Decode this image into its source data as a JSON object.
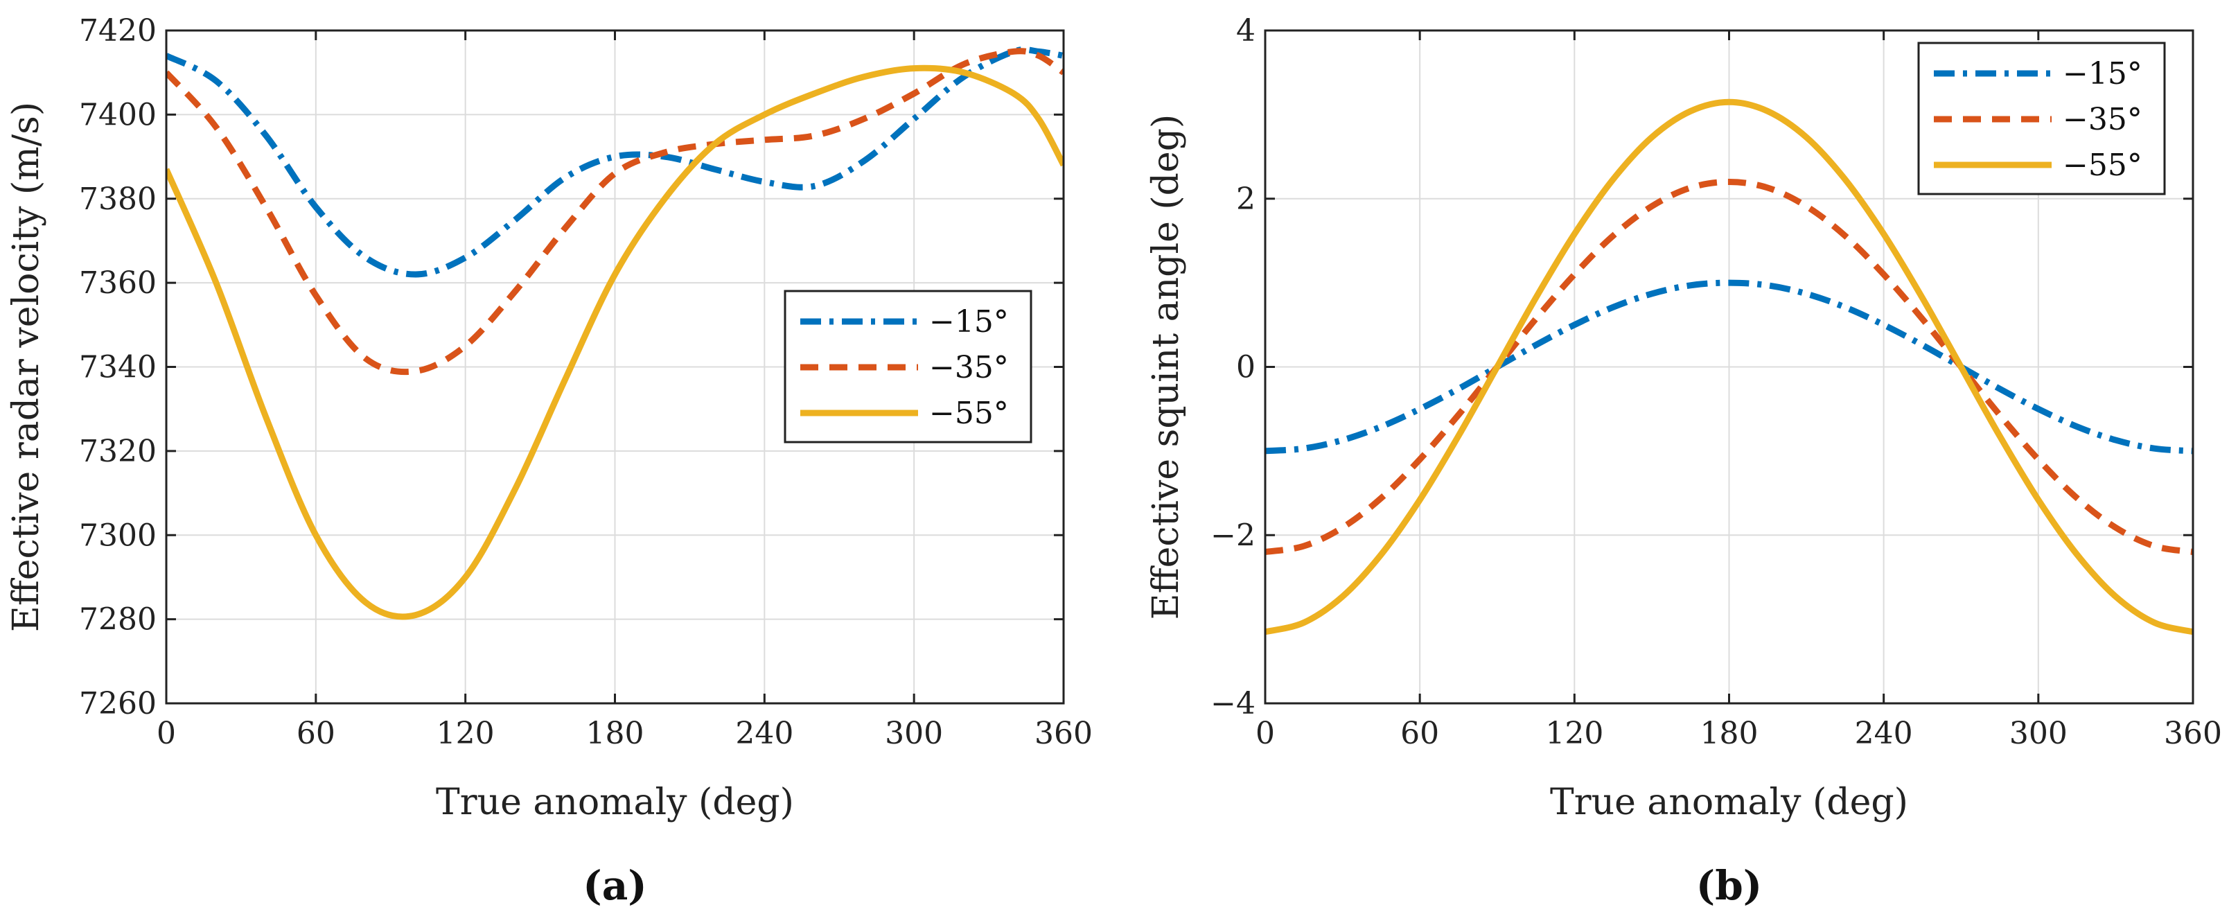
{
  "chart_data": [
    {
      "id": "a",
      "panel_label": "(a)",
      "type": "line",
      "xlabel": "True anomaly (deg)",
      "ylabel": "Effective radar velocity (m/s)",
      "xlim": [
        0,
        360
      ],
      "ylim": [
        7260,
        7420
      ],
      "xticks": [
        0,
        60,
        120,
        180,
        240,
        300,
        360
      ],
      "yticks": [
        7260,
        7280,
        7300,
        7320,
        7340,
        7360,
        7380,
        7400,
        7420
      ],
      "xtick_labels": [
        "0",
        "60",
        "120",
        "180",
        "240",
        "300",
        "360"
      ],
      "ytick_labels": [
        "7260",
        "7280",
        "7300",
        "7320",
        "7340",
        "7360",
        "7380",
        "7400",
        "7420"
      ],
      "grid": true,
      "legend_position": "middle-right",
      "x": [
        0,
        20,
        40,
        60,
        80,
        100,
        120,
        140,
        160,
        180,
        200,
        220,
        240,
        260,
        280,
        300,
        320,
        340,
        350,
        360
      ],
      "series": [
        {
          "name": "−15°",
          "color": "#0072BD",
          "style": "dashdot",
          "values": [
            7414,
            7408,
            7395,
            7378,
            7366,
            7362,
            7366,
            7375,
            7385,
            7390,
            7390,
            7387,
            7384,
            7383,
            7389,
            7399,
            7409,
            7415,
            7415,
            7414
          ]
        },
        {
          "name": "−35°",
          "color": "#D95319",
          "style": "dashed",
          "values": [
            7410,
            7397,
            7378,
            7357,
            7342,
            7339,
            7345,
            7358,
            7373,
            7386,
            7391,
            7393,
            7394,
            7395,
            7399,
            7405,
            7412,
            7415,
            7414,
            7410
          ]
        },
        {
          "name": "−55°",
          "color": "#EDB120",
          "style": "solid",
          "values": [
            7387,
            7360,
            7328,
            7300,
            7284,
            7281,
            7290,
            7311,
            7337,
            7362,
            7380,
            7393,
            7400,
            7405,
            7409,
            7411,
            7410,
            7405,
            7399,
            7388
          ]
        }
      ]
    },
    {
      "id": "b",
      "panel_label": "(b)",
      "type": "line",
      "xlabel": "True anomaly (deg)",
      "ylabel": "Effective squint angle (deg)",
      "xlim": [
        0,
        360
      ],
      "ylim": [
        -4,
        4
      ],
      "xticks": [
        0,
        60,
        120,
        180,
        240,
        300,
        360
      ],
      "yticks": [
        -4,
        -2,
        0,
        2,
        4
      ],
      "xtick_labels": [
        "0",
        "60",
        "120",
        "180",
        "240",
        "300",
        "360"
      ],
      "ytick_labels": [
        "−4",
        "−2",
        "0",
        "2",
        "4"
      ],
      "grid": true,
      "legend_position": "top-right",
      "x": [
        0,
        15,
        30,
        45,
        60,
        75,
        90,
        105,
        120,
        135,
        150,
        165,
        180,
        195,
        210,
        225,
        240,
        255,
        270,
        285,
        300,
        315,
        330,
        345,
        360
      ],
      "series": [
        {
          "name": "−15°",
          "color": "#0072BD",
          "style": "dashdot",
          "values": [
            -1.0,
            -0.97,
            -0.87,
            -0.71,
            -0.5,
            -0.26,
            0.0,
            0.26,
            0.5,
            0.71,
            0.87,
            0.97,
            1.0,
            0.97,
            0.87,
            0.71,
            0.5,
            0.26,
            0.0,
            -0.26,
            -0.5,
            -0.71,
            -0.87,
            -0.97,
            -1.0
          ]
        },
        {
          "name": "−35°",
          "color": "#D95319",
          "style": "dashed",
          "values": [
            -2.2,
            -2.13,
            -1.91,
            -1.56,
            -1.1,
            -0.57,
            0.0,
            0.57,
            1.1,
            1.56,
            1.91,
            2.13,
            2.2,
            2.13,
            1.91,
            1.56,
            1.1,
            0.57,
            0.0,
            -0.57,
            -1.1,
            -1.56,
            -1.91,
            -2.13,
            -2.2
          ]
        },
        {
          "name": "−55°",
          "color": "#EDB120",
          "style": "solid",
          "values": [
            -3.15,
            -3.04,
            -2.73,
            -2.23,
            -1.58,
            -0.82,
            0.0,
            0.82,
            1.58,
            2.23,
            2.73,
            3.04,
            3.15,
            3.04,
            2.73,
            2.23,
            1.58,
            0.82,
            0.0,
            -0.82,
            -1.58,
            -2.23,
            -2.73,
            -3.04,
            -3.15
          ]
        }
      ]
    }
  ]
}
